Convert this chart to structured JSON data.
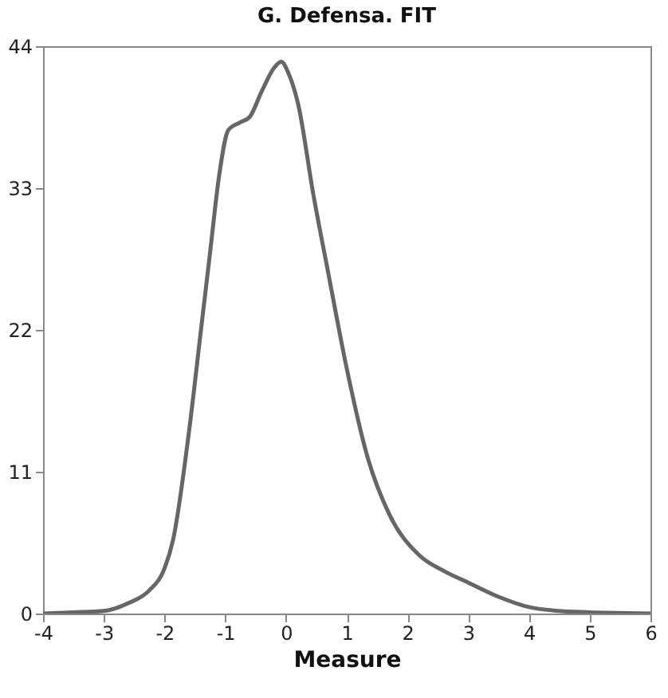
{
  "chart_data": {
    "type": "line",
    "title": "G. Defensa. FIT",
    "xlabel": "Measure",
    "x": [
      -4,
      -3.5,
      -3,
      -2.6,
      -2.25,
      -2,
      -1.86,
      -1.6,
      -1.4,
      -1.25,
      -1.1,
      -0.95,
      -0.75,
      -0.6,
      -0.4,
      -0.2,
      -0.08,
      0.05,
      0.2,
      0.45,
      0.7,
      1,
      1.35,
      1.7,
      2.2,
      2.6,
      3,
      3.5,
      4,
      4.5,
      5,
      6
    ],
    "series": [
      {
        "color": "#666666",
        "values": [
          0,
          0.1,
          0.2,
          0.8,
          1.8,
          3.5,
          5.7,
          14,
          22,
          28,
          34,
          37.5,
          38.1,
          38.5,
          40.5,
          42.3,
          42.8,
          41.8,
          39.5,
          32.5,
          26.3,
          19,
          12,
          7.7,
          4.5,
          3.3,
          2.4,
          1.3,
          0.5,
          0.2,
          0.1,
          0
        ]
      }
    ],
    "xlim": [
      -4,
      6
    ],
    "xticks": [
      -4,
      -3,
      -2,
      -1,
      0,
      1,
      2,
      3,
      4,
      5,
      6
    ],
    "ylim": [
      0,
      44
    ],
    "yticks": [
      0,
      11,
      22,
      33,
      44
    ],
    "grid": false
  }
}
